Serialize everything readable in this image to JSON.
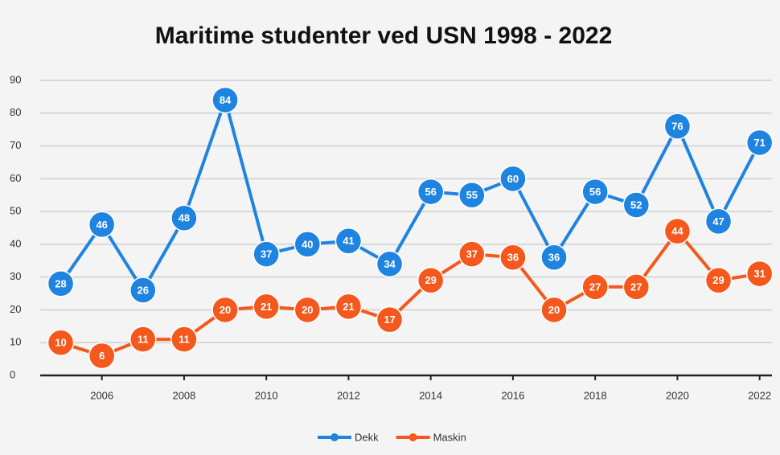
{
  "chart_data": {
    "type": "line",
    "title": "Maritime studenter ved USN 1998 - 2022",
    "x": [
      2005,
      2006,
      2007,
      2008,
      2009,
      2010,
      2011,
      2012,
      2013,
      2014,
      2015,
      2016,
      2017,
      2018,
      2019,
      2020,
      2021,
      2022
    ],
    "series": [
      {
        "name": "Dekk",
        "color": "#1f83e0",
        "values": [
          28,
          46,
          26,
          48,
          84,
          37,
          40,
          41,
          34,
          56,
          55,
          60,
          36,
          56,
          52,
          76,
          47,
          71
        ]
      },
      {
        "name": "Maskin",
        "color": "#f4581c",
        "values": [
          10,
          6,
          11,
          11,
          20,
          21,
          20,
          21,
          17,
          29,
          37,
          36,
          20,
          27,
          27,
          44,
          29,
          31
        ]
      }
    ],
    "xlim": [
      2004.5,
      2022.3
    ],
    "xticks": [
      2006,
      2008,
      2010,
      2012,
      2014,
      2016,
      2018,
      2020,
      2022
    ],
    "ylim": [
      0,
      90
    ],
    "yticks": [
      0,
      10,
      20,
      30,
      40,
      50,
      60,
      70,
      80,
      90
    ],
    "grid": true,
    "legend": "bottom"
  }
}
